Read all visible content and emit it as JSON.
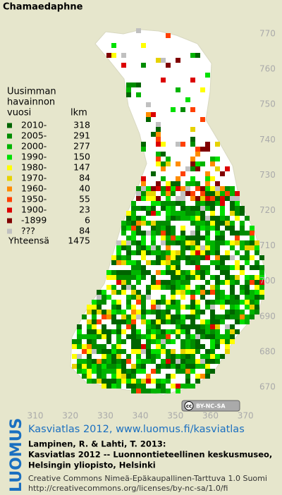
{
  "title": "Chamaedaphne",
  "legend": {
    "header": [
      "Uusimman",
      "havainnon",
      "vuosi"
    ],
    "count_header": "lkm",
    "rows": [
      {
        "label": "2010-",
        "count": 318,
        "color": "#006400"
      },
      {
        "label": "2005-",
        "count": 291,
        "color": "#008c00"
      },
      {
        "label": "2000-",
        "count": 277,
        "color": "#00b400"
      },
      {
        "label": "1990-",
        "count": 150,
        "color": "#00e000"
      },
      {
        "label": "1980-",
        "count": 147,
        "color": "#ffff00"
      },
      {
        "label": "1970-",
        "count": 84,
        "color": "#e6d200"
      },
      {
        "label": "1960-",
        "count": 40,
        "color": "#ff8c00"
      },
      {
        "label": "1950-",
        "count": 55,
        "color": "#ff4000"
      },
      {
        "label": "1900-",
        "count": 23,
        "color": "#dc0000"
      },
      {
        "label": "-1899",
        "count": 6,
        "color": "#800000"
      },
      {
        "label": "???",
        "count": 84,
        "color": "#c0c0c0"
      }
    ],
    "total_label": "Yhteensä",
    "total": 1475
  },
  "axes": {
    "y_labels": [
      770,
      760,
      750,
      740,
      730,
      720,
      710,
      700,
      690,
      680,
      670
    ],
    "x_labels": [
      310,
      320,
      330,
      340,
      350,
      360,
      370
    ]
  },
  "badge": {
    "icon": "cc",
    "text": "BY-NC-SA"
  },
  "logo": "LUOMUS",
  "link": "Kasviatlas 2012, www.luomus.fi/kasviatlas",
  "citation": [
    "Lampinen, R. & Lahti, T. 2013:",
    "Kasviatlas 2012 -- Luonnontieteellinen keskusmuseo,",
    "Helsingin yliopisto, Helsinki"
  ],
  "license": [
    "Creative Commons Nimeä-Epäkaupallinen-Tarttuva 1.0 Suomi",
    "http://creativecommons.org/licenses/by-nc-sa/1.0/fi"
  ]
}
